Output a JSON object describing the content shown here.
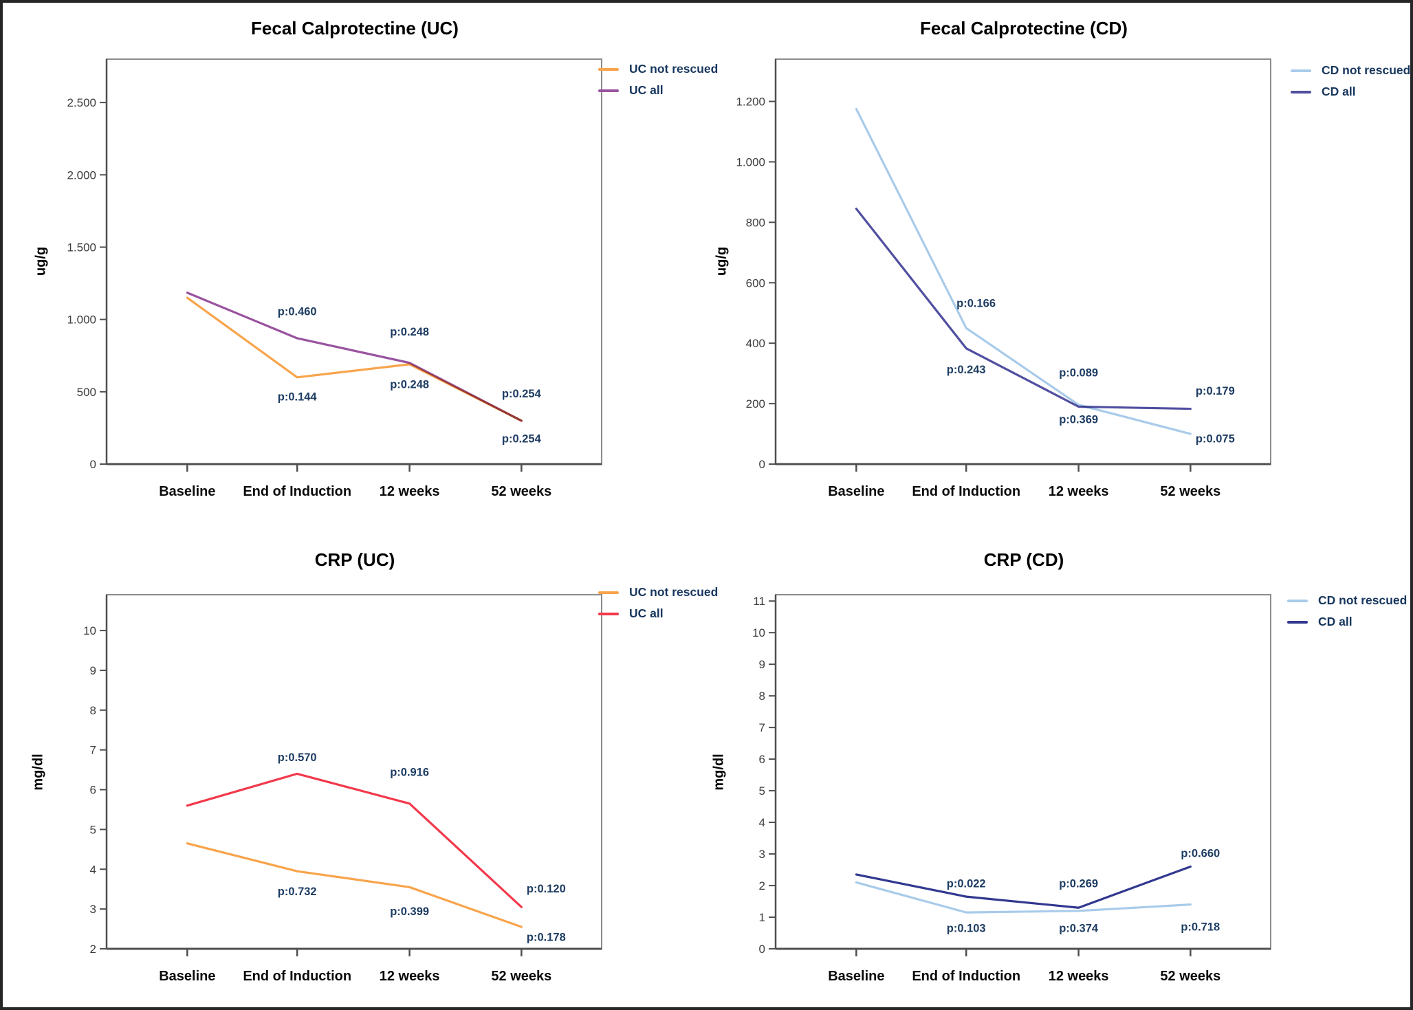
{
  "figure": {
    "background": "#ffffff",
    "border_color": "#262626"
  },
  "chart_data": [
    {
      "type": "line",
      "title": "Fecal Calprotectine (UC)",
      "ylabel": "ug/g",
      "xlabel": "",
      "grid": false,
      "legend_position": "right-top",
      "categories": [
        "Baseline",
        "End of Induction",
        "12 weeks",
        "52 weeks"
      ],
      "ylim": [
        0,
        2800
      ],
      "yticks": [
        {
          "value": 0,
          "label": "0"
        },
        {
          "value": 500,
          "label": "500"
        },
        {
          "value": 1000,
          "label": "1.000"
        },
        {
          "value": 1500,
          "label": "1.500"
        },
        {
          "value": 2000,
          "label": "2.000"
        },
        {
          "value": 2500,
          "label": "2.500"
        }
      ],
      "series": [
        {
          "name": "UC not rescued",
          "color": "#F8A44C",
          "values": [
            1150,
            600,
            690,
            300
          ]
        },
        {
          "name": "UC all",
          "color": "#99539F",
          "values": [
            1185,
            870,
            700,
            300
          ]
        }
      ],
      "annotations": [
        {
          "text": "p:0.460",
          "cat": 1,
          "value": 1030,
          "dx": 0
        },
        {
          "text": "p:0.144",
          "cat": 1,
          "value": 440,
          "dx": 0
        },
        {
          "text": "p:0.248",
          "cat": 2,
          "value": 890,
          "dx": 0
        },
        {
          "text": "p:0.248",
          "cat": 2,
          "value": 525,
          "dx": 0
        },
        {
          "text": "p:0.254",
          "cat": 3,
          "value": 460,
          "dx": 0
        },
        {
          "text": "p:0.254",
          "cat": 3,
          "value": 150,
          "dx": 0
        }
      ]
    },
    {
      "type": "line",
      "title": "Fecal Calprotectine (CD)",
      "ylabel": "ug/g",
      "xlabel": "",
      "grid": false,
      "legend_position": "right-top",
      "categories": [
        "Baseline",
        "End of Induction",
        "12 weeks",
        "52 weeks"
      ],
      "ylim": [
        0,
        1340
      ],
      "yticks": [
        {
          "value": 0,
          "label": "0"
        },
        {
          "value": 200,
          "label": "200"
        },
        {
          "value": 400,
          "label": "400"
        },
        {
          "value": 600,
          "label": "600"
        },
        {
          "value": 800,
          "label": "800"
        },
        {
          "value": 1000,
          "label": "1.000"
        },
        {
          "value": 1200,
          "label": "1.200"
        }
      ],
      "series": [
        {
          "name": "CD not rescued",
          "color": "#A9CBEA",
          "values": [
            1175,
            450,
            196,
            100
          ]
        },
        {
          "name": "CD all",
          "color": "#514FA0",
          "values": [
            845,
            383,
            190,
            183
          ]
        }
      ],
      "annotations": [
        {
          "text": "p:0.166",
          "cat": 1,
          "value": 520,
          "dx": 0.02
        },
        {
          "text": "p:0.243",
          "cat": 1,
          "value": 300,
          "dx": 0
        },
        {
          "text": "p:0.089",
          "cat": 2,
          "value": 290,
          "dx": 0
        },
        {
          "text": "p:0.369",
          "cat": 2,
          "value": 135,
          "dx": 0
        },
        {
          "text": "p:0.179",
          "cat": 3,
          "value": 230,
          "dx": 0.05
        },
        {
          "text": "p:0.075",
          "cat": 3,
          "value": 72,
          "dx": 0.05
        }
      ]
    },
    {
      "type": "line",
      "title": "CRP (UC)",
      "ylabel": "mg/dl",
      "xlabel": "",
      "grid": false,
      "legend_position": "right-top",
      "categories": [
        "Baseline",
        "End of Induction",
        "12 weeks",
        "52 weeks"
      ],
      "ylim": [
        2,
        10.9
      ],
      "yticks": [
        {
          "value": 2,
          "label": "2"
        },
        {
          "value": 3,
          "label": "3"
        },
        {
          "value": 4,
          "label": "4"
        },
        {
          "value": 5,
          "label": "5"
        },
        {
          "value": 6,
          "label": "6"
        },
        {
          "value": 7,
          "label": "7"
        },
        {
          "value": 8,
          "label": "8"
        },
        {
          "value": 9,
          "label": "9"
        },
        {
          "value": 10,
          "label": "10"
        }
      ],
      "series": [
        {
          "name": "UC not rescued",
          "color": "#F8A44C",
          "values": [
            4.65,
            3.95,
            3.55,
            2.55
          ]
        },
        {
          "name": "UC all",
          "color": "#F2394B",
          "values": [
            5.6,
            6.4,
            5.65,
            3.05
          ]
        }
      ],
      "annotations": [
        {
          "text": "p:0.570",
          "cat": 1,
          "value": 6.72,
          "dx": 0
        },
        {
          "text": "p:0.732",
          "cat": 1,
          "value": 3.35,
          "dx": 0
        },
        {
          "text": "p:0.916",
          "cat": 2,
          "value": 6.35,
          "dx": 0
        },
        {
          "text": "p:0.399",
          "cat": 2,
          "value": 2.85,
          "dx": 0
        },
        {
          "text": "p:0.120",
          "cat": 3,
          "value": 3.42,
          "dx": 0.05
        },
        {
          "text": "p:0.178",
          "cat": 3,
          "value": 2.2,
          "dx": 0.05
        }
      ]
    },
    {
      "type": "line",
      "title": "CRP (CD)",
      "ylabel": "mg/dl",
      "xlabel": "",
      "grid": false,
      "legend_position": "right-top",
      "categories": [
        "Baseline",
        "End of Induction",
        "12 weeks",
        "52 weeks"
      ],
      "ylim": [
        0,
        11.2
      ],
      "yticks": [
        {
          "value": 0,
          "label": "0"
        },
        {
          "value": 1,
          "label": "1"
        },
        {
          "value": 2,
          "label": "2"
        },
        {
          "value": 3,
          "label": "3"
        },
        {
          "value": 4,
          "label": "4"
        },
        {
          "value": 5,
          "label": "5"
        },
        {
          "value": 6,
          "label": "6"
        },
        {
          "value": 7,
          "label": "7"
        },
        {
          "value": 8,
          "label": "8"
        },
        {
          "value": 9,
          "label": "9"
        },
        {
          "value": 10,
          "label": "10"
        },
        {
          "value": 11,
          "label": "11"
        }
      ],
      "series": [
        {
          "name": "CD not rescued",
          "color": "#A9CBEA",
          "values": [
            2.1,
            1.15,
            1.2,
            1.4
          ]
        },
        {
          "name": "CD all",
          "color": "#31388F",
          "values": [
            2.35,
            1.65,
            1.3,
            2.6
          ]
        }
      ],
      "annotations": [
        {
          "text": "p:0.022",
          "cat": 1,
          "value": 1.95,
          "dx": 0
        },
        {
          "text": "p:0.103",
          "cat": 1,
          "value": 0.53,
          "dx": 0
        },
        {
          "text": "p:0.269",
          "cat": 2,
          "value": 1.95,
          "dx": 0
        },
        {
          "text": "p:0.374",
          "cat": 2,
          "value": 0.53,
          "dx": 0
        },
        {
          "text": "p:0.660",
          "cat": 3,
          "value": 2.9,
          "dx": 0.02
        },
        {
          "text": "p:0.718",
          "cat": 3,
          "value": 0.58,
          "dx": 0.02
        }
      ]
    }
  ]
}
